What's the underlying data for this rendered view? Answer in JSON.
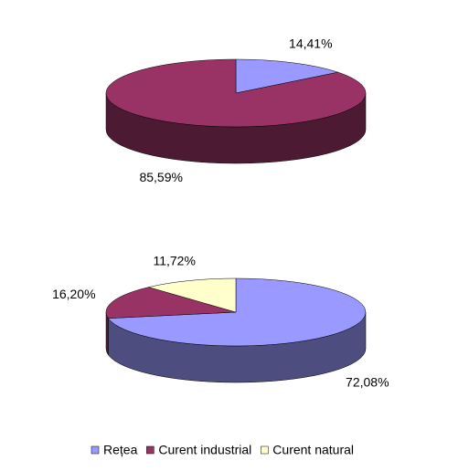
{
  "chart_data": [
    {
      "type": "pie",
      "values": [
        14.41,
        85.59
      ],
      "value_labels": [
        "14,41%",
        "85,59%"
      ],
      "colors": [
        "#9999ff",
        "#993366"
      ]
    },
    {
      "type": "pie",
      "categories": [
        "Rețea",
        "Curent industrial",
        "Curent natural"
      ],
      "values": [
        72.08,
        16.2,
        11.72
      ],
      "value_labels": [
        "72,08%",
        "16,20%",
        "11,72%"
      ],
      "colors": [
        "#9999ff",
        "#993366",
        "#ffffcc"
      ]
    }
  ]
}
